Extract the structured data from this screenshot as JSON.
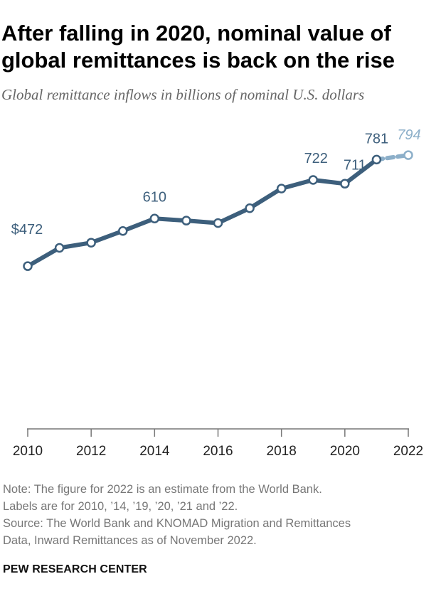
{
  "title": "After falling in 2020, nominal value of global remittances is back on the rise",
  "subtitle": "Global remittance inflows in billions of nominal U.S. dollars",
  "note_line1": "Note: The figure for 2022 is an estimate from the World Bank.",
  "note_line2": "Labels are for 2010, ’14, ’19, ’20, ’21 and ’22.",
  "source_line1": "Source: The World Bank and KNOMAD Migration and Remittances",
  "source_line2": "Data, Inward Remittances as of November 2022.",
  "brand": "PEW RESEARCH CENTER",
  "colors": {
    "line": "#3d5f7c",
    "estimate": "#8cafc9",
    "axis": "#777777",
    "label": "#3d5f7c"
  },
  "chart_data": {
    "type": "line",
    "title": "After falling in 2020, nominal value of global remittances is back on the rise",
    "subtitle": "Global remittance inflows in billions of nominal U.S. dollars",
    "xlabel": "",
    "ylabel": "",
    "x": [
      2010,
      2011,
      2012,
      2013,
      2014,
      2015,
      2016,
      2017,
      2018,
      2019,
      2020,
      2021,
      2022
    ],
    "values": [
      472,
      525,
      540,
      574,
      610,
      604,
      597,
      640,
      697,
      722,
      711,
      781,
      794
    ],
    "estimate_from": 2022,
    "xticks": [
      "2010",
      "2012",
      "2014",
      "2016",
      "2018",
      "2020",
      "2022"
    ],
    "xlim": [
      2010,
      2022
    ],
    "ylim": [
      0,
      860
    ],
    "grid": false,
    "legend": "none",
    "data_labels": [
      {
        "x": 2010,
        "text": "$472"
      },
      {
        "x": 2014,
        "text": "610"
      },
      {
        "x": 2019,
        "text": "722"
      },
      {
        "x": 2020,
        "text": "711"
      },
      {
        "x": 2021,
        "text": "781"
      },
      {
        "x": 2022,
        "text": "794"
      }
    ]
  }
}
